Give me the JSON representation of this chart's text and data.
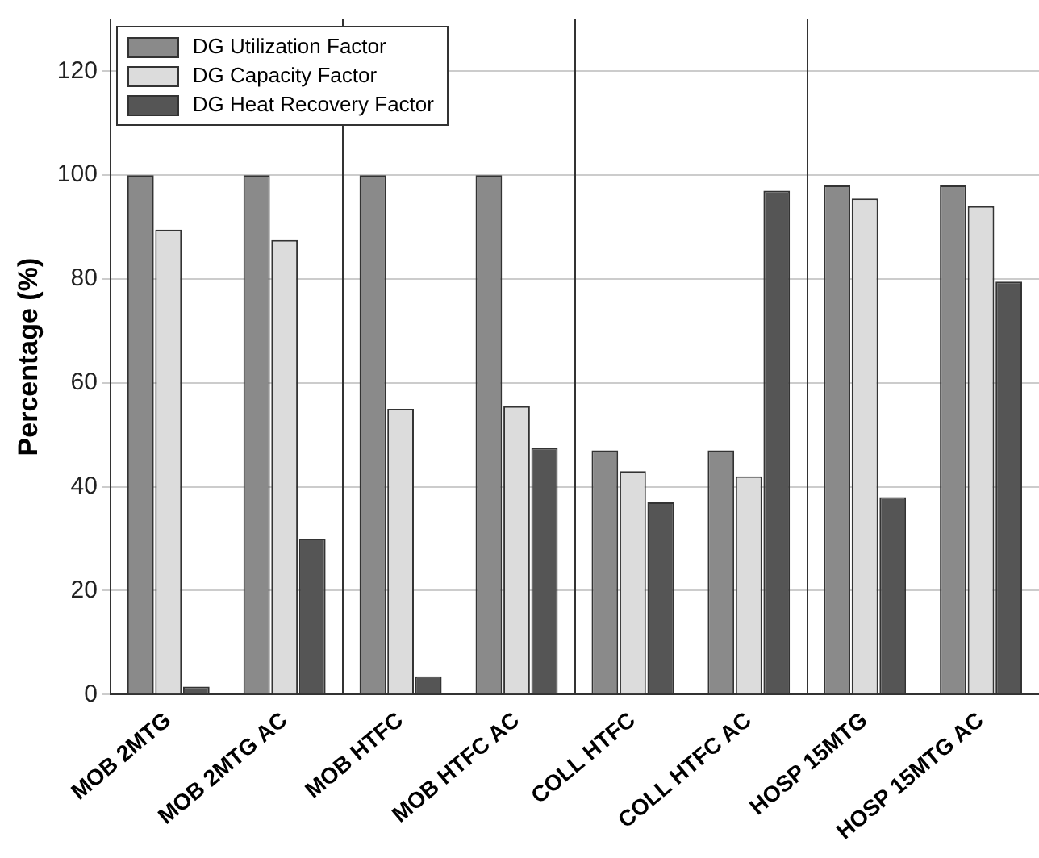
{
  "chart_data": {
    "type": "bar",
    "ylabel": "Percentage (%)",
    "categories": [
      "MOB 2MTG",
      "MOB 2MTG AC",
      "MOB HTFC",
      "MOB HTFC AC",
      "COLL HTFC",
      "COLL HTFC AC",
      "HOSP 15MTG",
      "HOSP 15MTG AC"
    ],
    "series": [
      {
        "name": "DG Utilization Factor",
        "color": "#8a8a8a",
        "values": [
          100,
          100,
          100,
          100,
          47,
          47,
          98,
          98
        ]
      },
      {
        "name": "DG Capacity Factor",
        "color": "#dcdcdc",
        "values": [
          89.5,
          87.5,
          55,
          55.5,
          43,
          42,
          95.5,
          94
        ]
      },
      {
        "name": "DG Heat Recovery Factor",
        "color": "#555555",
        "values": [
          1.5,
          30,
          3.5,
          47.5,
          37,
          97,
          38,
          79.5
        ]
      }
    ],
    "ylim": [
      0,
      130
    ],
    "yticks": [
      0,
      20,
      40,
      60,
      80,
      100,
      120
    ],
    "grid": "y",
    "legend": "top left"
  }
}
